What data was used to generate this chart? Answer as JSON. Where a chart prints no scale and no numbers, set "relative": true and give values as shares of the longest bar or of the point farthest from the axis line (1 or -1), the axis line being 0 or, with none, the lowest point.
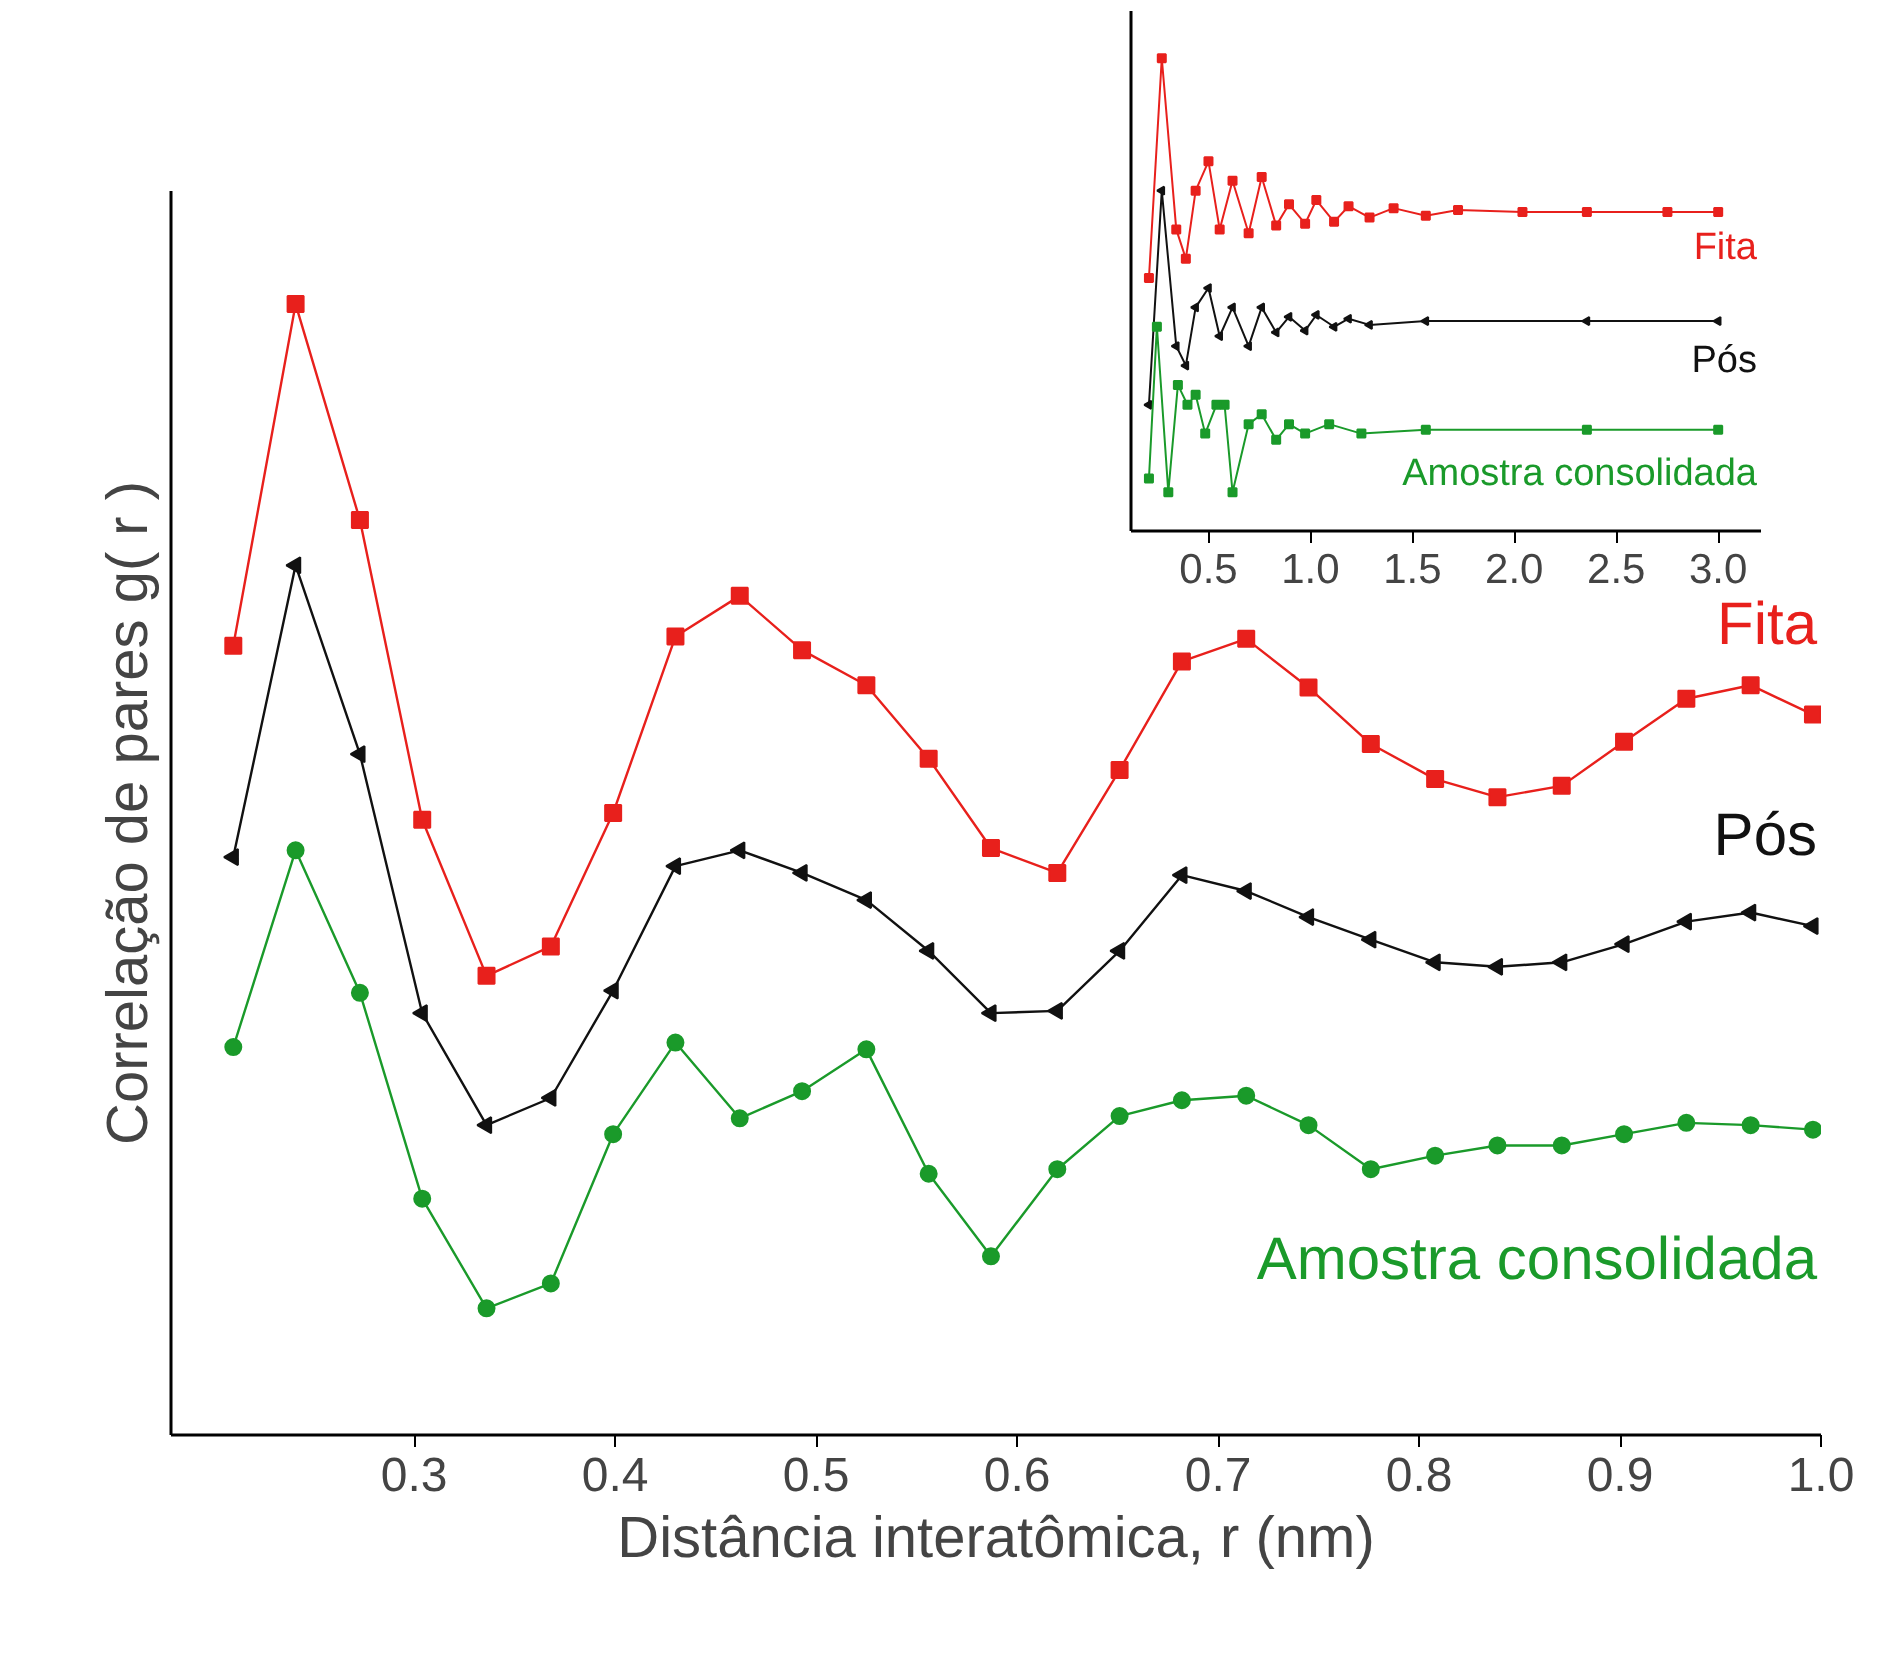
{
  "chart_data": [
    {
      "type": "line",
      "relative": true,
      "xlabel": "Distância interatômica, r (nm)",
      "ylabel": "Correlação de pares g( r )",
      "xlim": [
        0.179,
        1.0
      ],
      "xticks": [
        {
          "value": 0.3,
          "label": "0.3"
        },
        {
          "value": 0.4,
          "label": "0.4"
        },
        {
          "value": 0.5,
          "label": "0.5"
        },
        {
          "value": 0.6,
          "label": "0.6"
        },
        {
          "value": 0.7,
          "label": "0.7"
        },
        {
          "value": 0.8,
          "label": "0.8"
        },
        {
          "value": 0.9,
          "label": "0.9"
        },
        {
          "value": 1.0,
          "label": "1.0"
        }
      ],
      "grid": false,
      "x": [
        0.21,
        0.241,
        0.273,
        0.304,
        0.336,
        0.368,
        0.399,
        0.43,
        0.462,
        0.493,
        0.525,
        0.556,
        0.587,
        0.62,
        0.651,
        0.682,
        0.714,
        0.745,
        0.776,
        0.808,
        0.839,
        0.871,
        0.902,
        0.933,
        0.965,
        0.996
      ],
      "series": [
        {
          "name": "Fita",
          "color": "#e8201c",
          "marker": "square",
          "values": [
            0.698,
            1.0,
            0.809,
            0.544,
            0.406,
            0.432,
            0.55,
            0.706,
            0.742,
            0.694,
            0.663,
            0.598,
            0.519,
            0.497,
            0.588,
            0.684,
            0.704,
            0.661,
            0.611,
            0.58,
            0.564,
            0.574,
            0.613,
            0.651,
            0.663,
            0.637
          ]
        },
        {
          "name": "Pós",
          "color": "#111111",
          "marker": "triangle",
          "values": [
            0.511,
            0.769,
            0.602,
            0.373,
            0.274,
            0.298,
            0.393,
            0.503,
            0.517,
            0.497,
            0.473,
            0.428,
            0.373,
            0.375,
            0.428,
            0.495,
            0.481,
            0.458,
            0.438,
            0.418,
            0.414,
            0.418,
            0.434,
            0.454,
            0.462,
            0.45
          ]
        },
        {
          "name": "Amostra consolidada",
          "color": "#1a9a2a",
          "marker": "circle",
          "values": [
            0.343,
            0.517,
            0.391,
            0.209,
            0.112,
            0.134,
            0.266,
            0.347,
            0.28,
            0.304,
            0.341,
            0.231,
            0.158,
            0.235,
            0.282,
            0.296,
            0.3,
            0.274,
            0.235,
            0.247,
            0.256,
            0.256,
            0.266,
            0.276,
            0.274,
            0.27
          ]
        }
      ]
    },
    {
      "type": "line",
      "relative": true,
      "xlim": [
        0.12,
        3.21
      ],
      "xticks": [
        {
          "value": 0.5,
          "label": "0.5"
        },
        {
          "value": 1.0,
          "label": "1.0"
        },
        {
          "value": 1.5,
          "label": "1.5"
        },
        {
          "value": 2.0,
          "label": "2.0"
        },
        {
          "value": 2.5,
          "label": "2.5"
        },
        {
          "value": 3.0,
          "label": "3.0"
        }
      ],
      "grid": false,
      "series": [
        {
          "name": "Fita",
          "color": "#e8201c",
          "marker": "square",
          "x": [
            0.208,
            0.271,
            0.342,
            0.389,
            0.437,
            0.5,
            0.555,
            0.618,
            0.697,
            0.761,
            0.832,
            0.895,
            0.974,
            1.029,
            1.116,
            1.187,
            1.29,
            1.408,
            1.566,
            1.724,
            2.04,
            2.356,
            2.751,
            3.0
          ],
          "values": [
            0.535,
            1.0,
            0.638,
            0.576,
            0.72,
            0.782,
            0.638,
            0.741,
            0.63,
            0.749,
            0.646,
            0.691,
            0.65,
            0.7,
            0.654,
            0.687,
            0.663,
            0.683,
            0.667,
            0.679,
            0.675,
            0.675,
            0.675,
            0.675
          ]
        },
        {
          "name": "Pós",
          "color": "#111111",
          "marker": "triangle",
          "x": [
            0.208,
            0.271,
            0.342,
            0.389,
            0.437,
            0.5,
            0.555,
            0.618,
            0.697,
            0.761,
            0.832,
            0.895,
            0.974,
            1.029,
            1.116,
            1.187,
            1.29,
            1.566,
            2.356,
            3.0
          ],
          "values": [
            0.267,
            0.72,
            0.391,
            0.35,
            0.473,
            0.514,
            0.412,
            0.473,
            0.391,
            0.473,
            0.42,
            0.453,
            0.424,
            0.457,
            0.432,
            0.449,
            0.436,
            0.444,
            0.444,
            0.444
          ]
        },
        {
          "name": "Amostra consolidada",
          "color": "#1a9a2a",
          "marker": "square",
          "x": [
            0.208,
            0.247,
            0.303,
            0.35,
            0.397,
            0.437,
            0.484,
            0.539,
            0.579,
            0.618,
            0.697,
            0.761,
            0.832,
            0.895,
            0.974,
            1.092,
            1.25,
            1.566,
            2.356,
            3.0
          ],
          "values": [
            0.111,
            0.432,
            0.082,
            0.309,
            0.267,
            0.288,
            0.206,
            0.267,
            0.267,
            0.082,
            0.226,
            0.247,
            0.193,
            0.226,
            0.206,
            0.226,
            0.206,
            0.214,
            0.214,
            0.214
          ]
        }
      ]
    }
  ]
}
